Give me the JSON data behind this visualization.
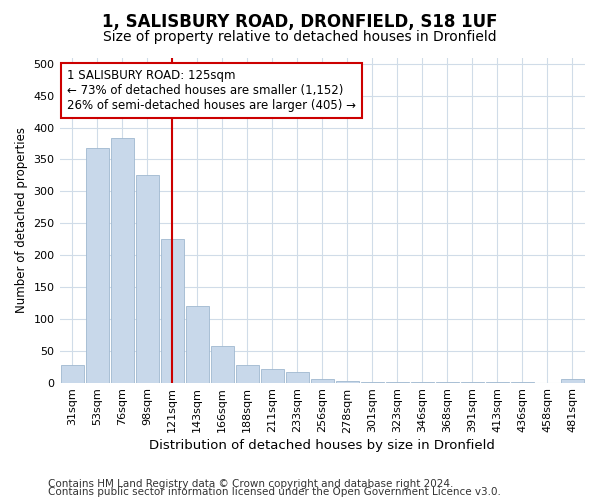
{
  "title1": "1, SALISBURY ROAD, DRONFIELD, S18 1UF",
  "title2": "Size of property relative to detached houses in Dronfield",
  "xlabel": "Distribution of detached houses by size in Dronfield",
  "ylabel": "Number of detached properties",
  "categories": [
    "31sqm",
    "53sqm",
    "76sqm",
    "98sqm",
    "121sqm",
    "143sqm",
    "166sqm",
    "188sqm",
    "211sqm",
    "233sqm",
    "256sqm",
    "278sqm",
    "301sqm",
    "323sqm",
    "346sqm",
    "368sqm",
    "391sqm",
    "413sqm",
    "436sqm",
    "458sqm",
    "481sqm"
  ],
  "values": [
    27,
    368,
    383,
    325,
    225,
    120,
    57,
    27,
    22,
    17,
    6,
    2,
    1,
    1,
    1,
    1,
    1,
    1,
    1,
    0,
    5
  ],
  "bar_color": "#c8d8ea",
  "bar_edge_color": "#a0b8d0",
  "vline_x": 4,
  "vline_color": "#cc0000",
  "annotation_text": "1 SALISBURY ROAD: 125sqm\n← 73% of detached houses are smaller (1,152)\n26% of semi-detached houses are larger (405) →",
  "annotation_box_facecolor": "#ffffff",
  "annotation_box_edgecolor": "#cc0000",
  "ylim": [
    0,
    510
  ],
  "yticks": [
    0,
    50,
    100,
    150,
    200,
    250,
    300,
    350,
    400,
    450,
    500
  ],
  "footer1": "Contains HM Land Registry data © Crown copyright and database right 2024.",
  "footer2": "Contains public sector information licensed under the Open Government Licence v3.0.",
  "bg_color": "#ffffff",
  "plot_bg_color": "#ffffff",
  "grid_color": "#d0dce8",
  "title1_fontsize": 12,
  "title2_fontsize": 10,
  "xlabel_fontsize": 9.5,
  "ylabel_fontsize": 8.5,
  "tick_fontsize": 8,
  "annotation_fontsize": 8.5,
  "footer_fontsize": 7.5
}
